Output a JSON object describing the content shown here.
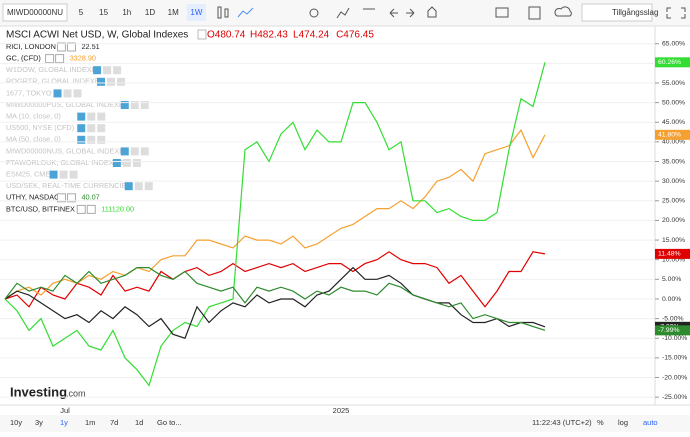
{
  "toolbar": {
    "symbol": "MIWD00000NU",
    "intervals": [
      "5",
      "15",
      "1h",
      "1D",
      "1M",
      "1W"
    ],
    "asset_class": "Tillgångsslag"
  },
  "header": {
    "title": "MSCI ACWI Net USD, W, Global Indexes",
    "ohlc": [
      "O480.74",
      "H482.43",
      "L474.24",
      "C476.45"
    ]
  },
  "legend": [
    {
      "name": "RICI, LONDON",
      "price": "22.51",
      "active": true
    },
    {
      "name": "GC, (CFD)",
      "price": "3328.90",
      "active": true
    },
    {
      "name": "W1DOW, GLOBAL INDEXES",
      "active": false
    },
    {
      "name": "ROGRTR, GLOBAL INDEXES",
      "active": false
    },
    {
      "name": "1677, TOKYO",
      "active": false
    },
    {
      "name": "MIWD00000PUS, GLOBAL INDEXES",
      "active": false
    },
    {
      "name": "MA (10, close, 0)",
      "active": false
    },
    {
      "name": "US500, NYSE (CFD)",
      "active": false
    },
    {
      "name": "MA (50, close, 0)",
      "active": false
    },
    {
      "name": "MIWD00000NUS, GLOBAL INDEXES",
      "active": false
    },
    {
      "name": "FTAWORLDUK, GLOBAL INDEXES",
      "active": false
    },
    {
      "name": "ESM25, CME",
      "active": false
    },
    {
      "name": "USD/SEK, REAL-TIME CURRENCIES",
      "active": false
    },
    {
      "name": "UTHY, NASDAQ",
      "price": "40.07",
      "active": true
    },
    {
      "name": "BTC/USD, BITFINEX",
      "price": "111120.00",
      "active": true
    }
  ],
  "chart_data": {
    "type": "line",
    "categories": [
      null,
      null,
      null,
      null,
      null,
      "Jul",
      null,
      null,
      null,
      null,
      null,
      null,
      null,
      null,
      null,
      null,
      null,
      null,
      null,
      null,
      null,
      null,
      null,
      null,
      null,
      null,
      null,
      null,
      "2025",
      null,
      null,
      null,
      null,
      null,
      null,
      null,
      null,
      null,
      null,
      null,
      null,
      null,
      null,
      null,
      null,
      null
    ],
    "ylim": [
      -27,
      69
    ],
    "yticks": [
      {
        "value": -25,
        "label": "-25.00%"
      },
      {
        "value": -20,
        "label": "-20.00%"
      },
      {
        "value": -15,
        "label": "-15.00%"
      },
      {
        "value": -10,
        "label": "-10.00%"
      },
      {
        "value": -5,
        "label": "-5.00%"
      },
      {
        "value": 0,
        "label": "0.00%"
      },
      {
        "value": 5,
        "label": "5.00%"
      },
      {
        "value": 10,
        "label": "10.00%"
      },
      {
        "value": 15,
        "label": "15.00%"
      },
      {
        "value": 20,
        "label": "20.00%"
      },
      {
        "value": 25,
        "label": "25.00%"
      },
      {
        "value": 30,
        "label": "30.00%"
      },
      {
        "value": 35,
        "label": "35.00%"
      },
      {
        "value": 40,
        "label": "40.00%"
      },
      {
        "value": 45,
        "label": "45.00%"
      },
      {
        "value": 50,
        "label": "50.00%"
      },
      {
        "value": 55,
        "label": "55.00%"
      },
      {
        "value": 60,
        "label": "60.00%"
      },
      {
        "value": 65,
        "label": "65.00%"
      }
    ],
    "grid": true,
    "series": [
      {
        "name": "MSCI ACWI Net USD",
        "color": "#e00000",
        "end_label": "11.48%",
        "values": [
          0,
          1,
          -2,
          3,
          1,
          0,
          4,
          3,
          1,
          6,
          2,
          3,
          2,
          7,
          5,
          7,
          8,
          6,
          7,
          9,
          7,
          8,
          9,
          8,
          9,
          7,
          8,
          9,
          9,
          7,
          9,
          10,
          12,
          10,
          9,
          9,
          8,
          4,
          6,
          2,
          -2,
          2,
          7,
          7,
          12,
          11.48
        ]
      },
      {
        "name": "GC, (CFD)",
        "color": "#f5a030",
        "end_label": "41.80%",
        "values": [
          0,
          2,
          3,
          1,
          4,
          5,
          4,
          6,
          5,
          7,
          6,
          8,
          7,
          10,
          11,
          11,
          15,
          15,
          14,
          13,
          16,
          15,
          15,
          14,
          16,
          13,
          14,
          16,
          18,
          19,
          21,
          23,
          23,
          25,
          23,
          26,
          30,
          31,
          33,
          30,
          37,
          38,
          39,
          43,
          36,
          41.8
        ]
      },
      {
        "name": "BTC/USD, BITFINEX",
        "color": "#33dd33",
        "end_label": "60.26%",
        "values": [
          0,
          -3,
          -8,
          -5,
          -12,
          -10,
          -8,
          -12,
          -13,
          -8,
          -15,
          -18,
          -22,
          -12,
          -8,
          -6,
          -7,
          -2,
          -1,
          0,
          38,
          40,
          35,
          42,
          45,
          38,
          43,
          40,
          40,
          50,
          50,
          45,
          38,
          40,
          25,
          25,
          22,
          23,
          21,
          20,
          20,
          22,
          38,
          51,
          49,
          60.26
        ]
      },
      {
        "name": "RICI, LONDON",
        "color": "#222222",
        "end_label": "-7.09%",
        "values": [
          0,
          2,
          1,
          -1,
          -3,
          -5,
          -4,
          -6,
          -3,
          -5,
          -2,
          -4,
          -7,
          -5,
          -9,
          -10,
          -2,
          -6,
          -3,
          -1,
          -2,
          1,
          -1,
          0,
          0,
          -2,
          1,
          2,
          5,
          8,
          5,
          5,
          6,
          4,
          1,
          0,
          -1,
          -1,
          -4,
          -6,
          -6,
          -5,
          -7,
          -6,
          -6,
          -7.09
        ]
      },
      {
        "name": "UTHY, NASDAQ",
        "color": "#2e8b2e",
        "end_label": "-7.99%",
        "values": [
          0,
          4,
          2,
          3,
          2,
          6,
          4,
          7,
          4,
          5,
          6,
          8,
          8,
          6,
          5,
          7,
          4,
          3,
          2,
          3,
          -1,
          3,
          2,
          3,
          2,
          0,
          2,
          1,
          3,
          2,
          2,
          1,
          4,
          3,
          1,
          0,
          -1,
          -2,
          -1,
          -5,
          -4,
          -5,
          -6,
          -6,
          -7,
          -7.99
        ]
      }
    ]
  },
  "footer": {
    "ranges": [
      "10y",
      "3y",
      "1y",
      "1m",
      "7d",
      "1d"
    ],
    "goto": "Go to...",
    "time": "11:22:43 (UTC+2)",
    "options": [
      "%",
      "log",
      "auto"
    ]
  },
  "logo": {
    "brand": "Investing",
    ".com": ".com"
  }
}
